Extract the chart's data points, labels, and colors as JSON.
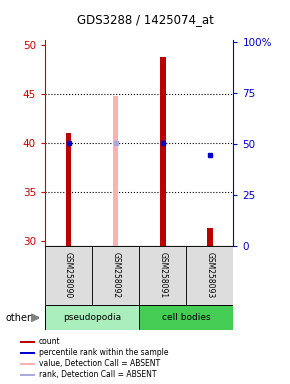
{
  "title": "GDS3288 / 1425074_at",
  "samples": [
    "GSM258090",
    "GSM258092",
    "GSM258091",
    "GSM258093"
  ],
  "ylim_left": [
    29.5,
    50.5
  ],
  "ylim_right": [
    0,
    101
  ],
  "yticks_left": [
    30,
    35,
    40,
    45,
    50
  ],
  "yticks_right": [
    0,
    25,
    50,
    75,
    100
  ],
  "bar_values": [
    41.0,
    null,
    48.8,
    31.3
  ],
  "bar_colors": [
    "#BB0000",
    null,
    "#BB0000",
    "#BB0000"
  ],
  "absent_bar_values": [
    null,
    44.8,
    null,
    null
  ],
  "absent_bar_color": "#FFB0B0",
  "bar_bottom": 29.5,
  "bar_width": 0.12,
  "percentile_values": [
    50,
    null,
    50,
    44
  ],
  "absent_percentile_value": 50,
  "absent_percentile_index": 1,
  "hline_values": [
    35,
    40,
    45
  ],
  "group_label_pseudopodia": "pseudopodia",
  "group_label_cell_bodies": "cell bodies",
  "group_color_pseudo": "#AAEEBB",
  "group_color_cell": "#44CC55",
  "other_label": "other",
  "left_axis_color": "#CC0000",
  "right_axis_color": "#0000CC",
  "legend_labels": [
    "count",
    "percentile rank within the sample",
    "value, Detection Call = ABSENT",
    "rank, Detection Call = ABSENT"
  ],
  "legend_colors": [
    "#BB0000",
    "#0000CC",
    "#FFB0B0",
    "#AAAADD"
  ]
}
